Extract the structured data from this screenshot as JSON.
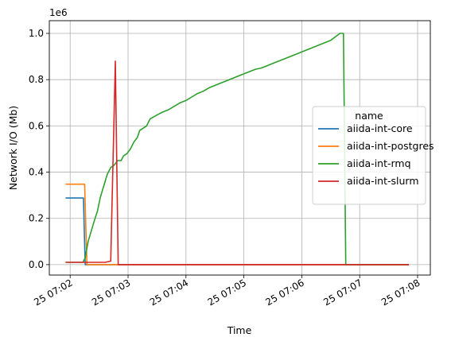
{
  "chart_data": {
    "type": "line",
    "xlabel": "Time",
    "ylabel": "Network I/O (Mb)",
    "y_offset_label": "1e6",
    "x_tick_labels": [
      "25 07:02",
      "25 07:03",
      "25 07:04",
      "25 07:05",
      "25 07:06",
      "25 07:07",
      "25 07:08"
    ],
    "x_ticks_minutes": [
      2,
      3,
      4,
      5,
      6,
      7,
      8
    ],
    "y_tick_labels": [
      "0.0",
      "0.2",
      "0.4",
      "0.6",
      "0.8",
      "1.0"
    ],
    "y_ticks": [
      0,
      200000,
      400000,
      600000,
      800000,
      1000000
    ],
    "xlim_minutes": [
      1.64,
      8.22
    ],
    "ylim": [
      -45000,
      1055000
    ],
    "grid": true,
    "legend": {
      "title": "name",
      "placement": "center-right"
    },
    "series": [
      {
        "name": "aiida-int-core",
        "color": "#1f77b4",
        "points": [
          [
            1.92,
            288000
          ],
          [
            2.23,
            288000
          ],
          [
            2.26,
            0
          ],
          [
            7.85,
            0
          ]
        ]
      },
      {
        "name": "aiida-int-postgres",
        "color": "#ff7f0e",
        "points": [
          [
            1.92,
            348000
          ],
          [
            2.25,
            348000
          ],
          [
            2.29,
            0
          ],
          [
            7.85,
            0
          ]
        ]
      },
      {
        "name": "aiida-int-rmq",
        "color": "#2ca02c",
        "points": [
          [
            1.92,
            10000
          ],
          [
            2.22,
            10000
          ],
          [
            2.26,
            30000
          ],
          [
            2.31,
            100000
          ],
          [
            2.37,
            150000
          ],
          [
            2.43,
            200000
          ],
          [
            2.47,
            230000
          ],
          [
            2.52,
            290000
          ],
          [
            2.58,
            340000
          ],
          [
            2.64,
            390000
          ],
          [
            2.7,
            420000
          ],
          [
            2.76,
            430000
          ],
          [
            2.82,
            450000
          ],
          [
            2.88,
            450000
          ],
          [
            2.92,
            470000
          ],
          [
            2.98,
            480000
          ],
          [
            3.04,
            500000
          ],
          [
            3.1,
            530000
          ],
          [
            3.16,
            550000
          ],
          [
            3.2,
            580000
          ],
          [
            3.26,
            590000
          ],
          [
            3.32,
            600000
          ],
          [
            3.38,
            630000
          ],
          [
            3.45,
            640000
          ],
          [
            3.52,
            650000
          ],
          [
            3.6,
            660000
          ],
          [
            3.7,
            670000
          ],
          [
            3.8,
            685000
          ],
          [
            3.9,
            700000
          ],
          [
            4.0,
            710000
          ],
          [
            4.1,
            725000
          ],
          [
            4.2,
            740000
          ],
          [
            4.3,
            750000
          ],
          [
            4.4,
            765000
          ],
          [
            4.5,
            775000
          ],
          [
            4.6,
            785000
          ],
          [
            4.7,
            795000
          ],
          [
            4.8,
            805000
          ],
          [
            4.9,
            815000
          ],
          [
            5.0,
            825000
          ],
          [
            5.1,
            835000
          ],
          [
            5.2,
            845000
          ],
          [
            5.3,
            850000
          ],
          [
            5.4,
            860000
          ],
          [
            5.5,
            870000
          ],
          [
            5.6,
            880000
          ],
          [
            5.7,
            890000
          ],
          [
            5.8,
            900000
          ],
          [
            5.9,
            910000
          ],
          [
            6.0,
            920000
          ],
          [
            6.1,
            930000
          ],
          [
            6.2,
            940000
          ],
          [
            6.3,
            950000
          ],
          [
            6.4,
            960000
          ],
          [
            6.5,
            970000
          ],
          [
            6.58,
            985000
          ],
          [
            6.66,
            1000000
          ],
          [
            6.72,
            1000000
          ],
          [
            6.76,
            0
          ],
          [
            7.85,
            0
          ]
        ]
      },
      {
        "name": "aiida-int-slurm",
        "color": "#d62728",
        "points": [
          [
            1.92,
            10000
          ],
          [
            2.6,
            10000
          ],
          [
            2.7,
            15000
          ],
          [
            2.78,
            880000
          ],
          [
            2.83,
            0
          ],
          [
            7.85,
            0
          ]
        ]
      }
    ]
  }
}
